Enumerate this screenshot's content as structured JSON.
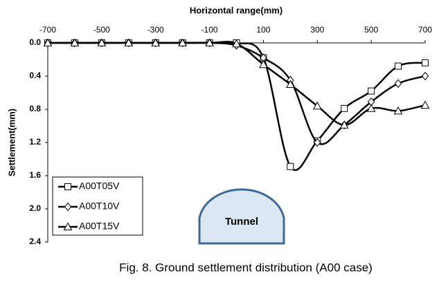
{
  "chart_data": {
    "type": "line",
    "x_label": "Horizontal range(mm)",
    "y_label": "Settlement(mm)",
    "caption": "Fig. 8. Ground settlement distribution (A00 case)",
    "annotation": "Tunnel",
    "x": [
      -700,
      -600,
      -500,
      -400,
      -300,
      -200,
      -100,
      0,
      100,
      200,
      300,
      400,
      500,
      600,
      700
    ],
    "series": [
      {
        "name": "A00T05V",
        "marker": "square",
        "color": "#000000",
        "values": [
          0,
          0,
          0,
          0,
          0,
          0,
          0,
          0,
          0.18,
          1.49,
          1.18,
          0.79,
          0.58,
          0.28,
          0.24
        ]
      },
      {
        "name": "A00T10V",
        "marker": "diamond",
        "color": "#000000",
        "values": [
          0,
          0,
          0,
          0,
          0,
          0,
          0,
          0.03,
          0.18,
          0.45,
          1.2,
          0.99,
          0.71,
          0.49,
          0.4
        ]
      },
      {
        "name": "A00T15V",
        "marker": "triangle",
        "color": "#000000",
        "values": [
          0,
          0,
          0,
          0,
          0,
          0,
          0,
          0.01,
          0.26,
          0.5,
          0.76,
          0.99,
          0.79,
          0.82,
          0.75
        ]
      }
    ],
    "xlim": [
      -700,
      700
    ],
    "xticks": [
      -700,
      -500,
      -300,
      -100,
      100,
      300,
      500,
      700
    ],
    "ylim": [
      0,
      2.4
    ],
    "y_inverted": true,
    "yticks": [
      {
        "value": 0,
        "label": "0.0"
      },
      0.4,
      0.8,
      1.2,
      1.6,
      {
        "value": 2,
        "label": "2.0"
      },
      2.4
    ],
    "grid": false,
    "legend": "lower left"
  }
}
